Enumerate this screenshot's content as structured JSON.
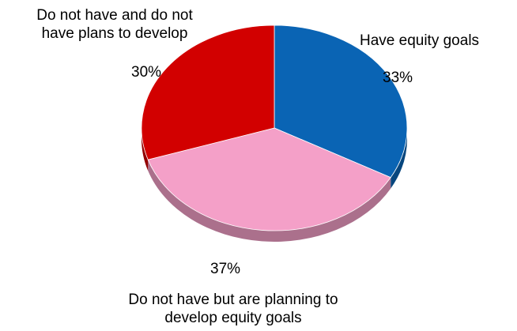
{
  "chart_data": {
    "type": "pie",
    "title": "",
    "categories": [
      "Have equity goals",
      "Do not have but are planning to develop equity goals",
      "Do not have and do not have plans to develop"
    ],
    "values": [
      33,
      37,
      30
    ],
    "value_labels": [
      "33%",
      "37%",
      "30%"
    ],
    "colors": [
      "#0a64b4",
      "#f4a0c8",
      "#d20000"
    ],
    "legend": "none"
  },
  "labels": {
    "have": {
      "line1": "Have equity goals",
      "pct": "33%"
    },
    "planning": {
      "line1": "Do not have but are planning to",
      "line2": "develop equity goals",
      "pct": "37%"
    },
    "no_plans": {
      "line1": "Do not have and do not",
      "line2": "have plans to develop",
      "pct": "30%"
    }
  }
}
